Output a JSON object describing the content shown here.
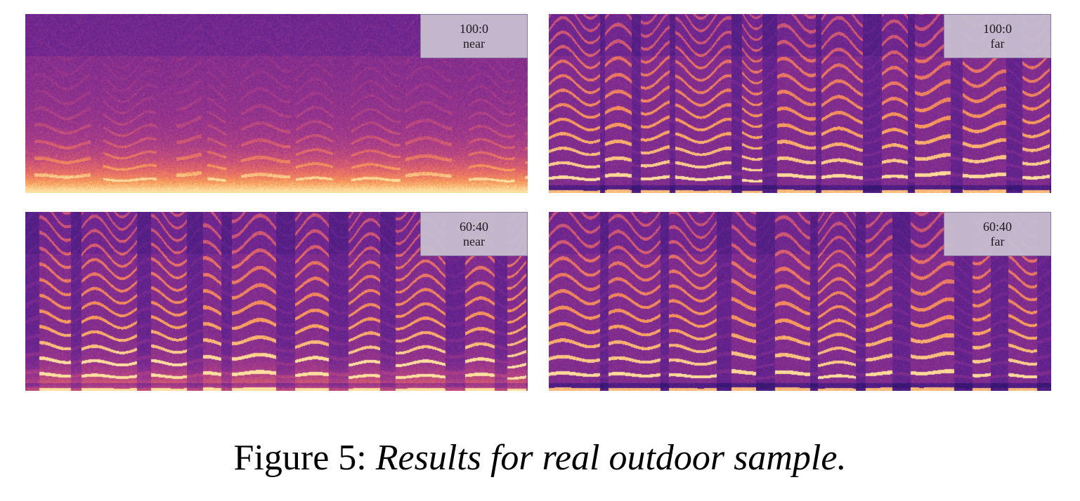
{
  "figure": {
    "caption_label": "Figure 5:",
    "caption_text": "Results for real outdoor sample."
  },
  "panels": [
    {
      "ratio": "100:0",
      "distance": "near"
    },
    {
      "ratio": "100:0",
      "distance": "far"
    },
    {
      "ratio": "60:40",
      "distance": "near"
    },
    {
      "ratio": "60:40",
      "distance": "far"
    }
  ],
  "colormap": [
    "#1a0b3e",
    "#3a1878",
    "#6a2590",
    "#a53a8a",
    "#e0646a",
    "#f89a5a",
    "#fde0a0"
  ]
}
